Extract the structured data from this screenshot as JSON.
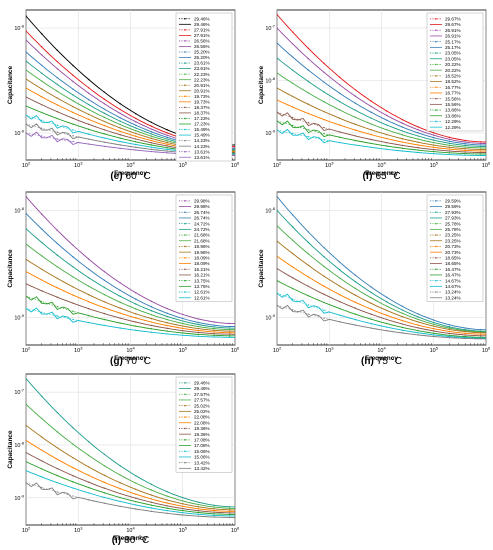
{
  "panels": [
    {
      "caption_letter": "(e)",
      "caption_temp": "60 °C",
      "chart_data": {
        "type": "line",
        "title": "",
        "xlabel": "Frequency",
        "ylabel": "Capacitance",
        "x_scale": "log",
        "y_scale": "log",
        "xlim": [
          100,
          1000000
        ],
        "x_ticks": [
          "10^2",
          "10^3",
          "10^4",
          "10^5",
          "10^6"
        ],
        "y_ticks": [
          "10^-9",
          "10^-8"
        ],
        "grid": true,
        "legend_position": "top-right",
        "series": [
          {
            "name": "29.46%",
            "start": 0.96,
            "end": 0.1,
            "marker": true
          },
          {
            "name": "29.46%",
            "start": 0.96,
            "end": 0.1,
            "marker": false
          },
          {
            "name": "27.91%",
            "start": 0.86,
            "end": 0.09,
            "marker": true
          },
          {
            "name": "27.91%",
            "start": 0.86,
            "end": 0.09,
            "marker": false
          },
          {
            "name": "26.56%",
            "start": 0.8,
            "end": 0.08,
            "marker": true
          },
          {
            "name": "26.56%",
            "start": 0.8,
            "end": 0.08,
            "marker": false
          },
          {
            "name": "25.20%",
            "start": 0.72,
            "end": 0.075,
            "marker": true
          },
          {
            "name": "25.20%",
            "start": 0.72,
            "end": 0.075,
            "marker": false
          },
          {
            "name": "23.61%",
            "start": 0.66,
            "end": 0.07,
            "marker": true
          },
          {
            "name": "23.61%",
            "start": 0.66,
            "end": 0.07,
            "marker": false
          },
          {
            "name": "22.23%",
            "start": 0.6,
            "end": 0.065,
            "marker": true
          },
          {
            "name": "22.23%",
            "start": 0.6,
            "end": 0.065,
            "marker": false
          },
          {
            "name": "20.91%",
            "start": 0.54,
            "end": 0.06,
            "marker": true
          },
          {
            "name": "20.91%",
            "start": 0.54,
            "end": 0.06,
            "marker": false
          },
          {
            "name": "19.73%",
            "start": 0.48,
            "end": 0.055,
            "marker": true
          },
          {
            "name": "19.73%",
            "start": 0.48,
            "end": 0.055,
            "marker": false
          },
          {
            "name": "18.37%",
            "start": 0.42,
            "end": 0.05,
            "marker": true
          },
          {
            "name": "18.37%",
            "start": 0.42,
            "end": 0.05,
            "marker": false
          },
          {
            "name": "17.23%",
            "start": 0.36,
            "end": 0.045,
            "marker": true
          },
          {
            "name": "17.23%",
            "start": 0.36,
            "end": 0.045,
            "marker": false
          },
          {
            "name": "15.49%",
            "start": 0.3,
            "end": 0.04,
            "marker": true
          },
          {
            "name": "15.49%",
            "start": 0.3,
            "end": 0.04,
            "marker": false
          },
          {
            "name": "14.23%",
            "start": 0.24,
            "end": 0.035,
            "marker": true
          },
          {
            "name": "14.23%",
            "start": 0.24,
            "end": 0.035,
            "marker": false
          },
          {
            "name": "13.61%",
            "start": 0.18,
            "end": 0.03,
            "marker": true
          },
          {
            "name": "13.61%",
            "start": 0.18,
            "end": 0.03,
            "marker": false
          }
        ]
      }
    },
    {
      "caption_letter": "(f)",
      "caption_temp": "65 °C",
      "chart_data": {
        "type": "line",
        "title": "",
        "xlabel": "Frequency",
        "ylabel": "Capacitance",
        "x_scale": "log",
        "y_scale": "log",
        "xlim": [
          100,
          1000000
        ],
        "x_ticks": [
          "10^2",
          "10^3",
          "10^4",
          "10^5",
          "10^6"
        ],
        "y_ticks": [
          "10^-9",
          "10^-8",
          "10^-7"
        ],
        "grid": true,
        "legend_position": "top-right",
        "series": [
          {
            "name": "29.67%",
            "start": 0.97,
            "end": 0.12,
            "marker": true
          },
          {
            "name": "29.67%",
            "start": 0.97,
            "end": 0.12,
            "marker": false
          },
          {
            "name": "26.91%",
            "start": 0.88,
            "end": 0.11,
            "marker": true
          },
          {
            "name": "26.91%",
            "start": 0.88,
            "end": 0.11,
            "marker": false
          },
          {
            "name": "25.17%",
            "start": 0.78,
            "end": 0.1,
            "marker": true
          },
          {
            "name": "25.17%",
            "start": 0.78,
            "end": 0.1,
            "marker": false
          },
          {
            "name": "23.05%",
            "start": 0.68,
            "end": 0.09,
            "marker": true
          },
          {
            "name": "23.05%",
            "start": 0.68,
            "end": 0.09,
            "marker": false
          },
          {
            "name": "20.22%",
            "start": 0.58,
            "end": 0.08,
            "marker": true
          },
          {
            "name": "20.22%",
            "start": 0.58,
            "end": 0.08,
            "marker": false
          },
          {
            "name": "18.52%",
            "start": 0.48,
            "end": 0.07,
            "marker": true
          },
          {
            "name": "18.52%",
            "start": 0.48,
            "end": 0.07,
            "marker": false
          },
          {
            "name": "16.77%",
            "start": 0.4,
            "end": 0.06,
            "marker": true
          },
          {
            "name": "16.77%",
            "start": 0.4,
            "end": 0.06,
            "marker": false
          },
          {
            "name": "15.56%",
            "start": 0.32,
            "end": 0.05,
            "marker": true
          },
          {
            "name": "15.56%",
            "start": 0.32,
            "end": 0.05,
            "marker": false
          },
          {
            "name": "13.86%",
            "start": 0.26,
            "end": 0.04,
            "marker": true
          },
          {
            "name": "13.86%",
            "start": 0.26,
            "end": 0.04,
            "marker": false
          },
          {
            "name": "12.29%",
            "start": 0.2,
            "end": 0.03,
            "marker": true
          },
          {
            "name": "12.29%",
            "start": 0.2,
            "end": 0.03,
            "marker": false
          }
        ]
      }
    },
    {
      "caption_letter": "(g)",
      "caption_temp": "70 °C",
      "chart_data": {
        "type": "line",
        "title": "",
        "xlabel": "Frequency",
        "ylabel": "Capacitance",
        "x_scale": "log",
        "y_scale": "log",
        "xlim": [
          100,
          1000000
        ],
        "x_ticks": [
          "10^2",
          "10^3",
          "10^4",
          "10^5",
          "10^6"
        ],
        "y_ticks": [
          "10^-9",
          "10^-8"
        ],
        "grid": true,
        "legend_position": "top-right",
        "series": [
          {
            "name": "29.98%",
            "start": 0.97,
            "end": 0.14,
            "marker": true
          },
          {
            "name": "29.98%",
            "start": 0.97,
            "end": 0.14,
            "marker": false
          },
          {
            "name": "26.74%",
            "start": 0.86,
            "end": 0.12,
            "marker": true
          },
          {
            "name": "26.74%",
            "start": 0.86,
            "end": 0.12,
            "marker": false
          },
          {
            "name": "24.72%",
            "start": 0.76,
            "end": 0.11,
            "marker": true
          },
          {
            "name": "24.72%",
            "start": 0.76,
            "end": 0.11,
            "marker": false
          },
          {
            "name": "21.68%",
            "start": 0.66,
            "end": 0.1,
            "marker": true
          },
          {
            "name": "21.68%",
            "start": 0.66,
            "end": 0.1,
            "marker": false
          },
          {
            "name": "19.96%",
            "start": 0.56,
            "end": 0.09,
            "marker": true
          },
          {
            "name": "19.96%",
            "start": 0.56,
            "end": 0.09,
            "marker": false
          },
          {
            "name": "18.09%",
            "start": 0.48,
            "end": 0.08,
            "marker": true
          },
          {
            "name": "18.09%",
            "start": 0.48,
            "end": 0.08,
            "marker": false
          },
          {
            "name": "16.21%",
            "start": 0.4,
            "end": 0.07,
            "marker": true
          },
          {
            "name": "16.21%",
            "start": 0.4,
            "end": 0.07,
            "marker": false
          },
          {
            "name": "13.75%",
            "start": 0.32,
            "end": 0.06,
            "marker": true
          },
          {
            "name": "13.75%",
            "start": 0.32,
            "end": 0.06,
            "marker": false
          },
          {
            "name": "12.61%",
            "start": 0.24,
            "end": 0.05,
            "marker": true
          },
          {
            "name": "12.61%",
            "start": 0.24,
            "end": 0.05,
            "marker": false
          }
        ]
      }
    },
    {
      "caption_letter": "(h)",
      "caption_temp": "75 °C",
      "chart_data": {
        "type": "line",
        "title": "",
        "xlabel": "Frequency",
        "ylabel": "Capacitance",
        "x_scale": "log",
        "y_scale": "log",
        "xlim": [
          100,
          1000000
        ],
        "x_ticks": [
          "10^2",
          "10^3",
          "10^4",
          "10^5",
          "10^6"
        ],
        "y_ticks": [
          "10^-9",
          "10^-8"
        ],
        "grid": true,
        "legend_position": "top-right",
        "series": [
          {
            "name": "29.59%",
            "start": 0.97,
            "end": 0.1,
            "marker": true
          },
          {
            "name": "29.59%",
            "start": 0.97,
            "end": 0.1,
            "marker": false
          },
          {
            "name": "27.93%",
            "start": 0.88,
            "end": 0.09,
            "marker": true
          },
          {
            "name": "27.93%",
            "start": 0.88,
            "end": 0.09,
            "marker": false
          },
          {
            "name": "25.78%",
            "start": 0.78,
            "end": 0.085,
            "marker": true
          },
          {
            "name": "25.78%",
            "start": 0.78,
            "end": 0.085,
            "marker": false
          },
          {
            "name": "23.25%",
            "start": 0.68,
            "end": 0.08,
            "marker": true
          },
          {
            "name": "23.25%",
            "start": 0.68,
            "end": 0.08,
            "marker": false
          },
          {
            "name": "20.73%",
            "start": 0.58,
            "end": 0.07,
            "marker": true
          },
          {
            "name": "20.73%",
            "start": 0.58,
            "end": 0.07,
            "marker": false
          },
          {
            "name": "18.65%",
            "start": 0.5,
            "end": 0.06,
            "marker": true
          },
          {
            "name": "18.65%",
            "start": 0.5,
            "end": 0.06,
            "marker": false
          },
          {
            "name": "16.47%",
            "start": 0.42,
            "end": 0.05,
            "marker": true
          },
          {
            "name": "16.47%",
            "start": 0.42,
            "end": 0.05,
            "marker": false
          },
          {
            "name": "14.67%",
            "start": 0.34,
            "end": 0.045,
            "marker": true
          },
          {
            "name": "14.67%",
            "start": 0.34,
            "end": 0.045,
            "marker": false
          },
          {
            "name": "13.24%",
            "start": 0.26,
            "end": 0.04,
            "marker": true
          },
          {
            "name": "13.24%",
            "start": 0.26,
            "end": 0.04,
            "marker": false
          }
        ]
      }
    },
    {
      "caption_letter": "(i)",
      "caption_temp": "80 °C",
      "chart_data": {
        "type": "line",
        "title": "",
        "xlabel": "Frequency",
        "ylabel": "Capacitance",
        "x_scale": "log",
        "y_scale": "log",
        "xlim": [
          100,
          1000000
        ],
        "x_ticks": [
          "10^2",
          "10^3",
          "10^4",
          "10^5",
          "10^6"
        ],
        "y_ticks": [
          "10^-9",
          "10^-8",
          "10^-7"
        ],
        "grid": true,
        "legend_position": "top-right",
        "series": [
          {
            "name": "29.46%",
            "start": 0.97,
            "end": 0.12,
            "marker": true
          },
          {
            "name": "29.46%",
            "start": 0.97,
            "end": 0.12,
            "marker": false
          },
          {
            "name": "27.57%",
            "start": 0.8,
            "end": 0.11,
            "marker": true
          },
          {
            "name": "27.57%",
            "start": 0.8,
            "end": 0.11,
            "marker": false
          },
          {
            "name": "25.02%",
            "start": 0.66,
            "end": 0.1,
            "marker": true
          },
          {
            "name": "25.02%",
            "start": 0.66,
            "end": 0.1,
            "marker": false
          },
          {
            "name": "22.08%",
            "start": 0.56,
            "end": 0.09,
            "marker": true
          },
          {
            "name": "22.08%",
            "start": 0.56,
            "end": 0.09,
            "marker": false
          },
          {
            "name": "19.36%",
            "start": 0.48,
            "end": 0.08,
            "marker": true
          },
          {
            "name": "19.36%",
            "start": 0.48,
            "end": 0.08,
            "marker": false
          },
          {
            "name": "17.08%",
            "start": 0.42,
            "end": 0.07,
            "marker": true
          },
          {
            "name": "17.08%",
            "start": 0.42,
            "end": 0.07,
            "marker": false
          },
          {
            "name": "15.06%",
            "start": 0.36,
            "end": 0.06,
            "marker": true
          },
          {
            "name": "15.06%",
            "start": 0.36,
            "end": 0.06,
            "marker": false
          },
          {
            "name": "13.42%",
            "start": 0.28,
            "end": 0.05,
            "marker": true
          },
          {
            "name": "13.42%",
            "start": 0.28,
            "end": 0.05,
            "marker": false
          }
        ]
      }
    }
  ],
  "palette": [
    "#000000",
    "#e41a1c",
    "#984ea3",
    "#377eb8",
    "#1f9e89",
    "#4daf4a",
    "#a6761d",
    "#ff7f00",
    "#8c564b",
    "#2ca02c",
    "#17becf",
    "#7f7f7f",
    "#9467bd"
  ]
}
